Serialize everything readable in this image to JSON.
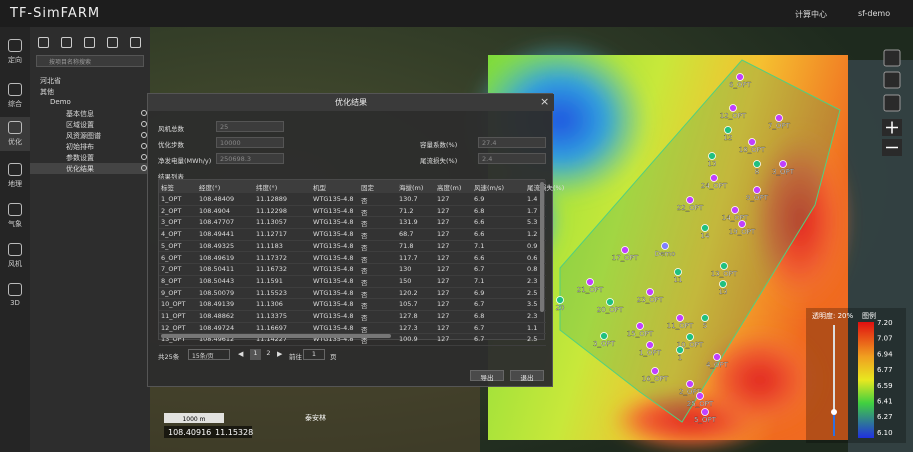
{
  "header": {
    "title": "TF-SimFARM",
    "compute": "计算中心",
    "user": "sf-demo"
  },
  "nav": [
    "定向",
    "综合",
    "优化",
    "地理",
    "气象",
    "风机",
    "3D"
  ],
  "sidebar": {
    "search": "按项目名称搜索",
    "tree": [
      "河北省",
      "其他",
      "Demo",
      "基本信息",
      "区域设置",
      "风资源图谱",
      "初始排布",
      "参数设置",
      "优化结果"
    ]
  },
  "dialog": {
    "title": "优化结果",
    "fields": [
      {
        "label": "风机总数",
        "value": "25"
      },
      {
        "label": "优化步数",
        "value": "10000"
      },
      {
        "label": "净发电量(MWh/y)",
        "value": "250698.3"
      },
      {
        "label": "容量系数(%)",
        "value": "27.4"
      },
      {
        "label": "尾流损失(%)",
        "value": "2.4"
      }
    ],
    "list_title": "结果列表",
    "columns": [
      "标签",
      "经度(°)",
      "纬度(°)",
      "机型",
      "固定",
      "海拔(m)",
      "高度(m)",
      "风速(m/s)",
      "尾流损失(%)"
    ],
    "rows": [
      [
        "1_OPT",
        "108.48409",
        "11.12889",
        "WTG135-4.8",
        "否",
        "130.7",
        "127",
        "6.9",
        "1.4"
      ],
      [
        "2_OPT",
        "108.4904",
        "11.12298",
        "WTG135-4.8",
        "否",
        "71.2",
        "127",
        "6.8",
        "1.7"
      ],
      [
        "3_OPT",
        "108.47707",
        "11.13057",
        "WTG135-4.8",
        "否",
        "131.9",
        "127",
        "6.6",
        "5.3"
      ],
      [
        "4_OPT",
        "108.49441",
        "11.12717",
        "WTG135-4.8",
        "否",
        "68.7",
        "127",
        "6.6",
        "1.2"
      ],
      [
        "5_OPT",
        "108.49325",
        "11.1183",
        "WTG135-4.8",
        "否",
        "71.8",
        "127",
        "7.1",
        "0.9"
      ],
      [
        "6_OPT",
        "108.49619",
        "11.17372",
        "WTG135-4.8",
        "否",
        "117.7",
        "127",
        "6.6",
        "0.6"
      ],
      [
        "7_OPT",
        "108.50411",
        "11.16732",
        "WTG135-4.8",
        "否",
        "130",
        "127",
        "6.7",
        "0.8"
      ],
      [
        "8_OPT",
        "108.50443",
        "11.1591",
        "WTG135-4.8",
        "否",
        "150",
        "127",
        "7.1",
        "2.3"
      ],
      [
        "9_OPT",
        "108.50079",
        "11.15523",
        "WTG135-4.8",
        "否",
        "120.2",
        "127",
        "6.9",
        "2.5"
      ],
      [
        "10_OPT",
        "108.49139",
        "11.1306",
        "WTG135-4.8",
        "否",
        "105.7",
        "127",
        "6.7",
        "3.5"
      ],
      [
        "11_OPT",
        "108.48862",
        "11.13375",
        "WTG135-4.8",
        "否",
        "127.8",
        "127",
        "6.8",
        "2.3"
      ],
      [
        "12_OPT",
        "108.49724",
        "11.16697",
        "WTG135-4.8",
        "否",
        "127.3",
        "127",
        "6.7",
        "1.1"
      ],
      [
        "13_OPT",
        "108.49612",
        "11.14227",
        "WTG135-4.8",
        "否",
        "100.9",
        "127",
        "6.7",
        "2.5"
      ]
    ],
    "pagination": {
      "total": "共25条",
      "page_size": "15条/页",
      "pages": [
        "1",
        "2"
      ],
      "goto": "前往",
      "goto_value": "1",
      "page_unit": "页"
    },
    "buttons": [
      "导出",
      "退出"
    ]
  },
  "map": {
    "markers": [
      "6_OPT",
      "12_OPT",
      "7_OPT",
      "12",
      "18_OPT",
      "13",
      "8",
      "3_OPT",
      "24_OPT",
      "9_OPT",
      "22_OPT",
      "14_OPT",
      "14",
      "19_OPT",
      "17_OPT",
      "Demo",
      "11",
      "13_OPT",
      "13",
      "21_OPT",
      "20",
      "23_OPT",
      "20_OPT",
      "11_OPT",
      "5",
      "15_OPT",
      "3_OPT",
      "1_OPT",
      "10_OPT",
      "1",
      "4_OPT",
      "16_OPT",
      "2_OPT",
      "25_OPT",
      "5_OPT"
    ],
    "legend": {
      "title": "透明度: 20%",
      "toggle": "图例",
      "ticks": [
        "7.20",
        "7.07",
        "6.94",
        "6.77",
        "6.59",
        "6.41",
        "6.27",
        "6.10"
      ]
    },
    "scale": "1000 m",
    "coords": [
      "108.40916",
      "11.15328"
    ],
    "place": "泰安林"
  }
}
